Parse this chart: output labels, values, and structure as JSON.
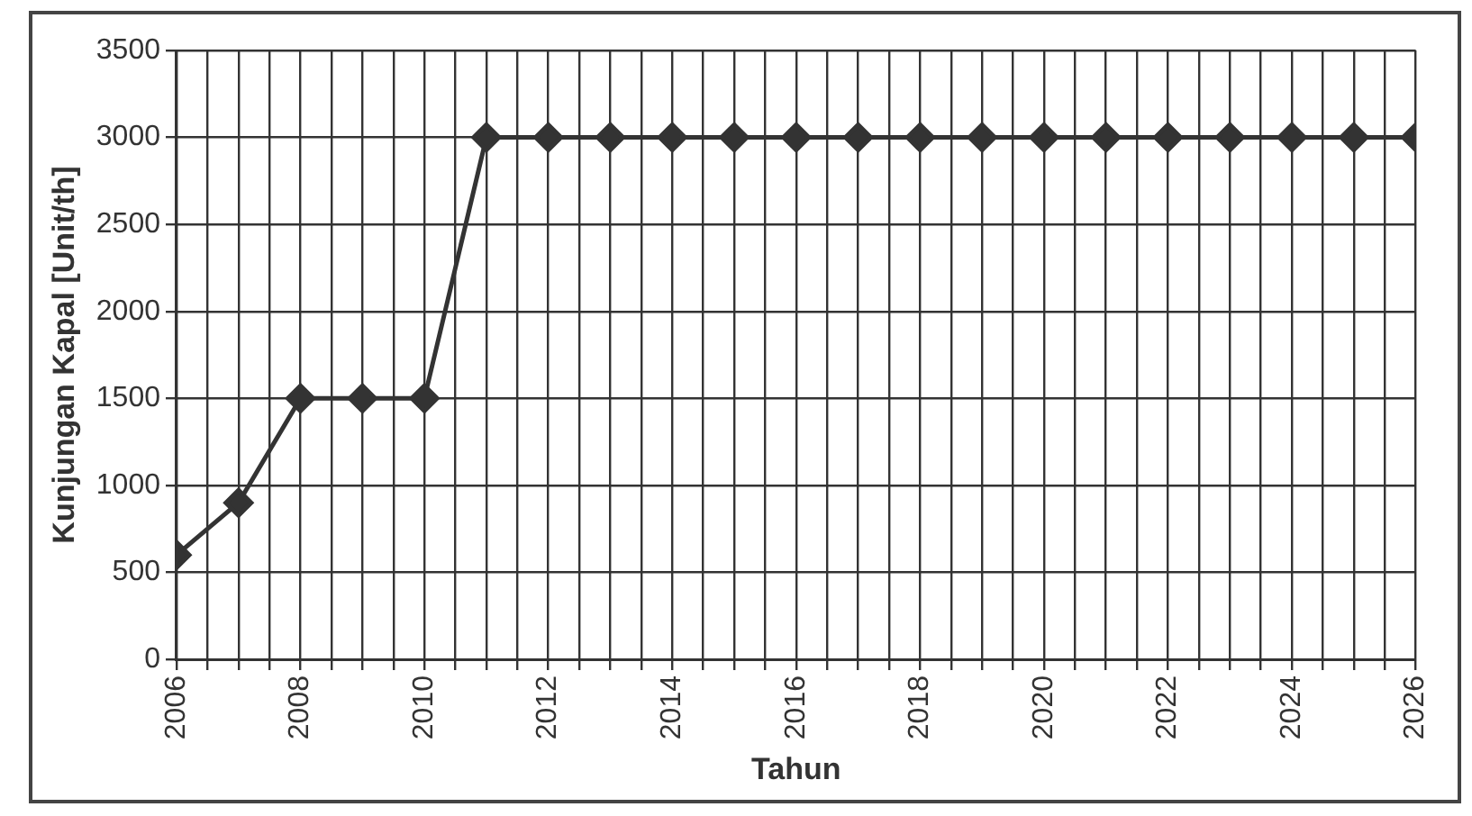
{
  "chart_data": {
    "type": "line",
    "xlabel": "Tahun",
    "ylabel": "Kunjungan Kapal [Unit/th]",
    "x": [
      2006,
      2007,
      2008,
      2009,
      2010,
      2011,
      2012,
      2013,
      2014,
      2015,
      2016,
      2017,
      2018,
      2019,
      2020,
      2021,
      2022,
      2023,
      2024,
      2025,
      2026
    ],
    "series": [
      {
        "color": "#333333",
        "values": [
          600,
          900,
          1500,
          1500,
          1500,
          3000,
          3000,
          3000,
          3000,
          3000,
          3000,
          3000,
          3000,
          3000,
          3000,
          3000,
          3000,
          3000,
          3000,
          3000,
          3000
        ]
      }
    ],
    "xlim": [
      2006,
      2026
    ],
    "xticks": [
      2006,
      {
        "value": 2006.5,
        "label": null
      },
      {
        "value": 2007,
        "label": null
      },
      {
        "value": 2007.5,
        "label": null
      },
      2008,
      {
        "value": 2008.5,
        "label": null
      },
      {
        "value": 2009,
        "label": null
      },
      {
        "value": 2009.5,
        "label": null
      },
      2010,
      {
        "value": 2010.5,
        "label": null
      },
      {
        "value": 2011,
        "label": null
      },
      {
        "value": 2011.5,
        "label": null
      },
      2012,
      {
        "value": 2012.5,
        "label": null
      },
      {
        "value": 2013,
        "label": null
      },
      {
        "value": 2013.5,
        "label": null
      },
      2014,
      {
        "value": 2014.5,
        "label": null
      },
      {
        "value": 2015,
        "label": null
      },
      {
        "value": 2015.5,
        "label": null
      },
      2016,
      {
        "value": 2016.5,
        "label": null
      },
      {
        "value": 2017,
        "label": null
      },
      {
        "value": 2017.5,
        "label": null
      },
      2018,
      {
        "value": 2018.5,
        "label": null
      },
      {
        "value": 2019,
        "label": null
      },
      {
        "value": 2019.5,
        "label": null
      },
      2020,
      {
        "value": 2020.5,
        "label": null
      },
      {
        "value": 2021,
        "label": null
      },
      {
        "value": 2021.5,
        "label": null
      },
      2022,
      {
        "value": 2022.5,
        "label": null
      },
      {
        "value": 2023,
        "label": null
      },
      {
        "value": 2023.5,
        "label": null
      },
      2024,
      {
        "value": 2024.5,
        "label": null
      },
      {
        "value": 2025,
        "label": null
      },
      {
        "value": 2025.5,
        "label": null
      },
      2026
    ],
    "ylim": [
      0,
      3500
    ],
    "yticks": [
      0,
      500,
      1000,
      1500,
      2000,
      2500,
      3000,
      3500
    ],
    "grid": true,
    "marker": "diamond",
    "line_style": "solid",
    "legend": false
  }
}
